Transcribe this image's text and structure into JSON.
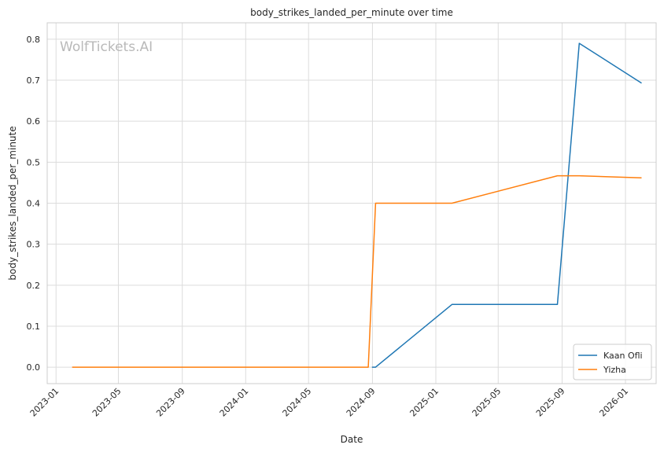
{
  "chart_data": {
    "type": "line",
    "title": "body_strikes_landed_per_minute over time",
    "xlabel": "Date",
    "ylabel": "body_strikes_landed_per_minute",
    "watermark": "WolfTickets.AI",
    "x_ticks": [
      "2023-01",
      "2023-05",
      "2023-09",
      "2024-01",
      "2024-05",
      "2024-09",
      "2025-01",
      "2025-05",
      "2025-09",
      "2026-01"
    ],
    "y_ticks": [
      "0.0",
      "0.1",
      "0.2",
      "0.3",
      "0.4",
      "0.5",
      "0.6",
      "0.7",
      "0.8"
    ],
    "xlim": [
      "2022-12-15",
      "2026-03-01"
    ],
    "ylim": [
      -0.04,
      0.84
    ],
    "grid": true,
    "legend_position": "bottom-right",
    "series": [
      {
        "name": "Kaan Ofli",
        "color": "#1f77b4",
        "points": [
          {
            "x": "2024-08-31",
            "y": 0.0
          },
          {
            "x": "2024-09-07",
            "y": 0.0
          },
          {
            "x": "2025-02-01",
            "y": 0.153
          },
          {
            "x": "2025-08-23",
            "y": 0.153
          },
          {
            "x": "2025-10-04",
            "y": 0.79
          },
          {
            "x": "2026-02-01",
            "y": 0.693
          }
        ]
      },
      {
        "name": "Yizha",
        "color": "#ff7f0e",
        "points": [
          {
            "x": "2023-02-01",
            "y": 0.0
          },
          {
            "x": "2024-08-24",
            "y": 0.0
          },
          {
            "x": "2024-09-07",
            "y": 0.4
          },
          {
            "x": "2025-02-01",
            "y": 0.4
          },
          {
            "x": "2025-08-23",
            "y": 0.467
          },
          {
            "x": "2025-10-04",
            "y": 0.467
          },
          {
            "x": "2026-02-01",
            "y": 0.462
          }
        ]
      }
    ]
  }
}
